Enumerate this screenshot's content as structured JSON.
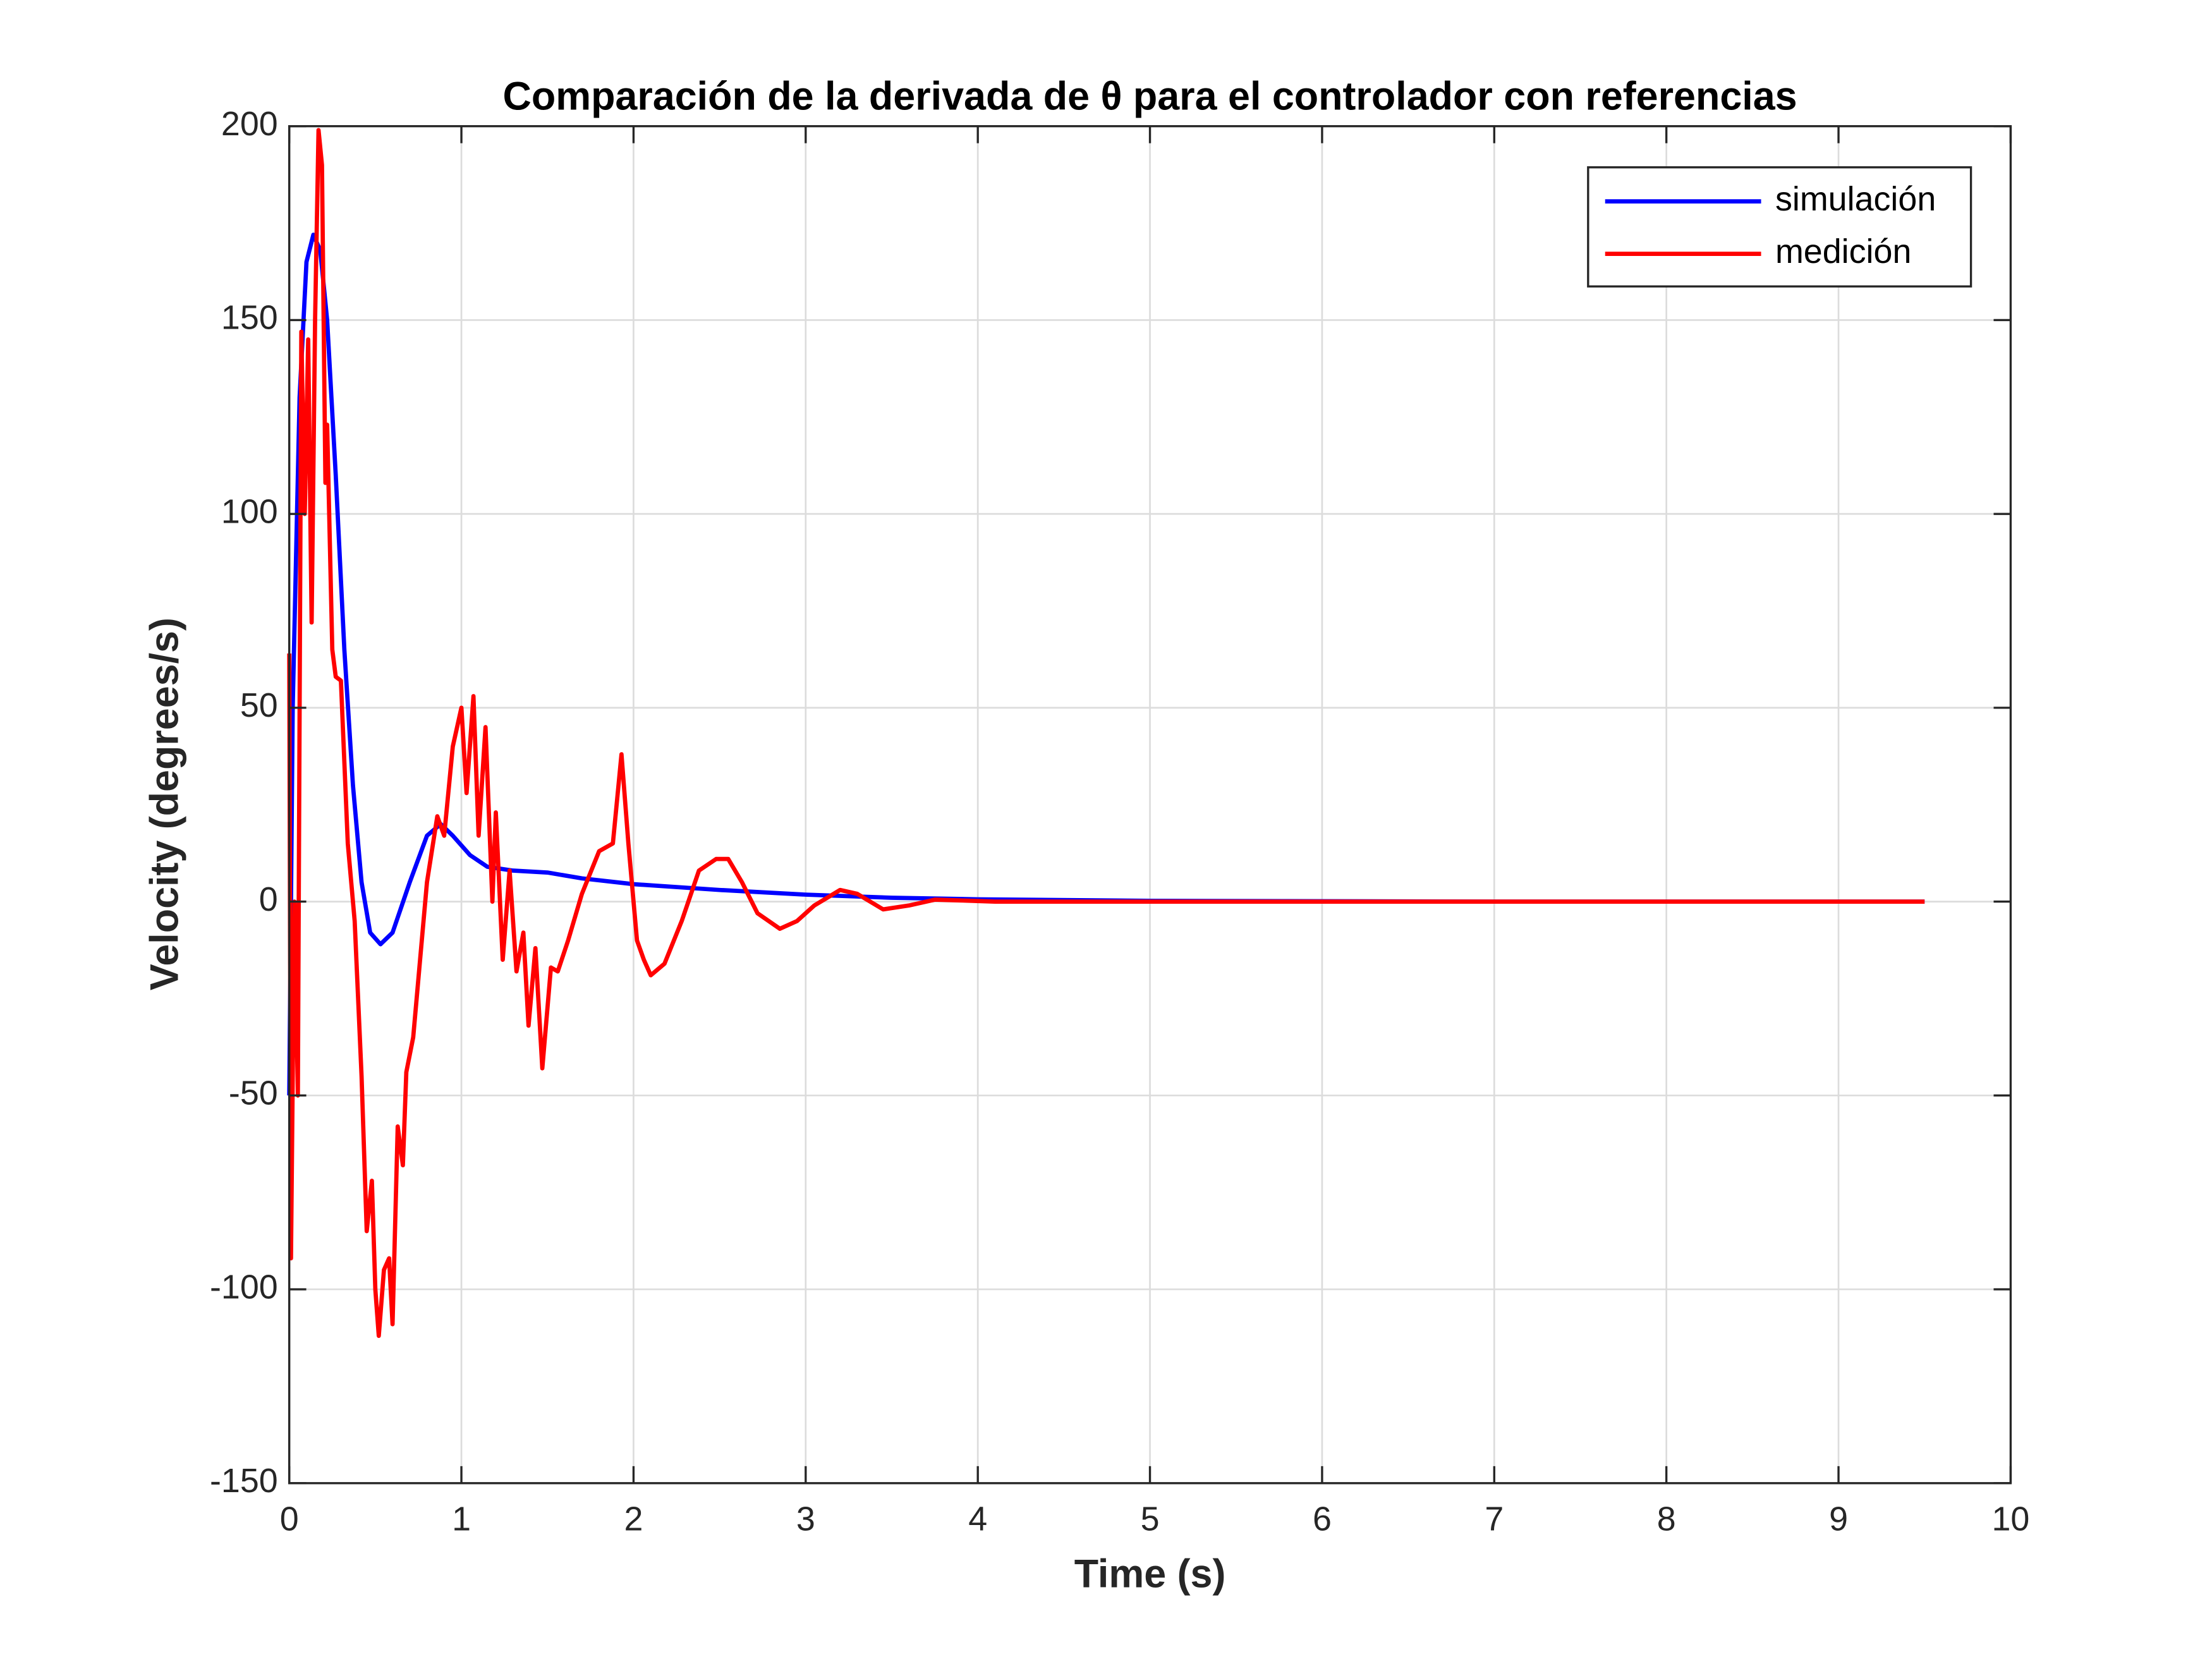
{
  "chart_data": {
    "type": "line",
    "title": "Comparación de la derivada de θ para el controlador con referencias",
    "x_label": "Time (s)",
    "y_label": "Velocity (degrees/s)",
    "xlim": [
      0,
      10
    ],
    "ylim": [
      -150,
      200
    ],
    "xticks": [
      0,
      1,
      2,
      3,
      4,
      5,
      6,
      7,
      8,
      9,
      10
    ],
    "yticks": [
      -150,
      -100,
      -50,
      0,
      50,
      100,
      150,
      200
    ],
    "grid": true,
    "legend": "top-right",
    "series": [
      {
        "name": "simulación",
        "color": "#0000ff",
        "x": [
          0,
          0.02,
          0.06,
          0.1,
          0.14,
          0.18,
          0.22,
          0.27,
          0.32,
          0.37,
          0.42,
          0.47,
          0.53,
          0.6,
          0.7,
          0.8,
          0.88,
          0.95,
          1.05,
          1.15,
          1.3,
          1.5,
          1.7,
          2.0,
          2.5,
          3.0,
          3.5,
          4,
          5,
          6,
          7,
          8,
          9.5
        ],
        "values": [
          -50,
          50,
          130,
          165,
          172,
          168,
          150,
          110,
          65,
          30,
          5,
          -8,
          -11,
          -8,
          5,
          17,
          20,
          17,
          12,
          9,
          8,
          7.5,
          6,
          4.5,
          3,
          1.8,
          1,
          0.6,
          0.2,
          0.1,
          0,
          0,
          0
        ]
      },
      {
        "name": "medición",
        "color": "#ff0000",
        "x": [
          0,
          0.01,
          0.03,
          0.05,
          0.07,
          0.09,
          0.11,
          0.13,
          0.15,
          0.17,
          0.19,
          0.21,
          0.22,
          0.25,
          0.27,
          0.3,
          0.34,
          0.38,
          0.42,
          0.45,
          0.48,
          0.5,
          0.52,
          0.55,
          0.58,
          0.6,
          0.63,
          0.66,
          0.68,
          0.72,
          0.76,
          0.8,
          0.86,
          0.9,
          0.95,
          1.0,
          1.03,
          1.07,
          1.1,
          1.14,
          1.18,
          1.2,
          1.24,
          1.28,
          1.32,
          1.36,
          1.39,
          1.43,
          1.47,
          1.52,
          1.56,
          1.62,
          1.7,
          1.8,
          1.88,
          1.93,
          1.97,
          2.02,
          2.06,
          2.1,
          2.18,
          2.28,
          2.38,
          2.48,
          2.55,
          2.63,
          2.72,
          2.85,
          2.95,
          3.05,
          3.2,
          3.3,
          3.45,
          3.6,
          3.75,
          3.9,
          4.1,
          4.5,
          5,
          6,
          7,
          8,
          9.5
        ],
        "values": [
          64,
          -92,
          0,
          -50,
          147,
          100,
          145,
          72,
          150,
          199,
          190,
          108,
          123,
          65,
          58,
          57,
          15,
          -5,
          -45,
          -85,
          -72,
          -100,
          -112,
          -95,
          -92,
          -109,
          -58,
          -68,
          -44,
          -35,
          -15,
          5,
          22,
          17,
          40,
          50,
          28,
          53,
          17,
          45,
          0,
          23,
          -15,
          8,
          -18,
          -8,
          -32,
          -12,
          -43,
          -17,
          -18,
          -10,
          2,
          13,
          15,
          38,
          15,
          -10,
          -15,
          -19,
          -16,
          -5,
          8,
          11,
          11,
          5,
          -3,
          -7,
          -5,
          -1,
          3,
          2,
          -2,
          -1,
          0.5,
          0.3,
          0,
          0,
          0,
          0,
          0,
          0,
          0
        ]
      }
    ]
  }
}
